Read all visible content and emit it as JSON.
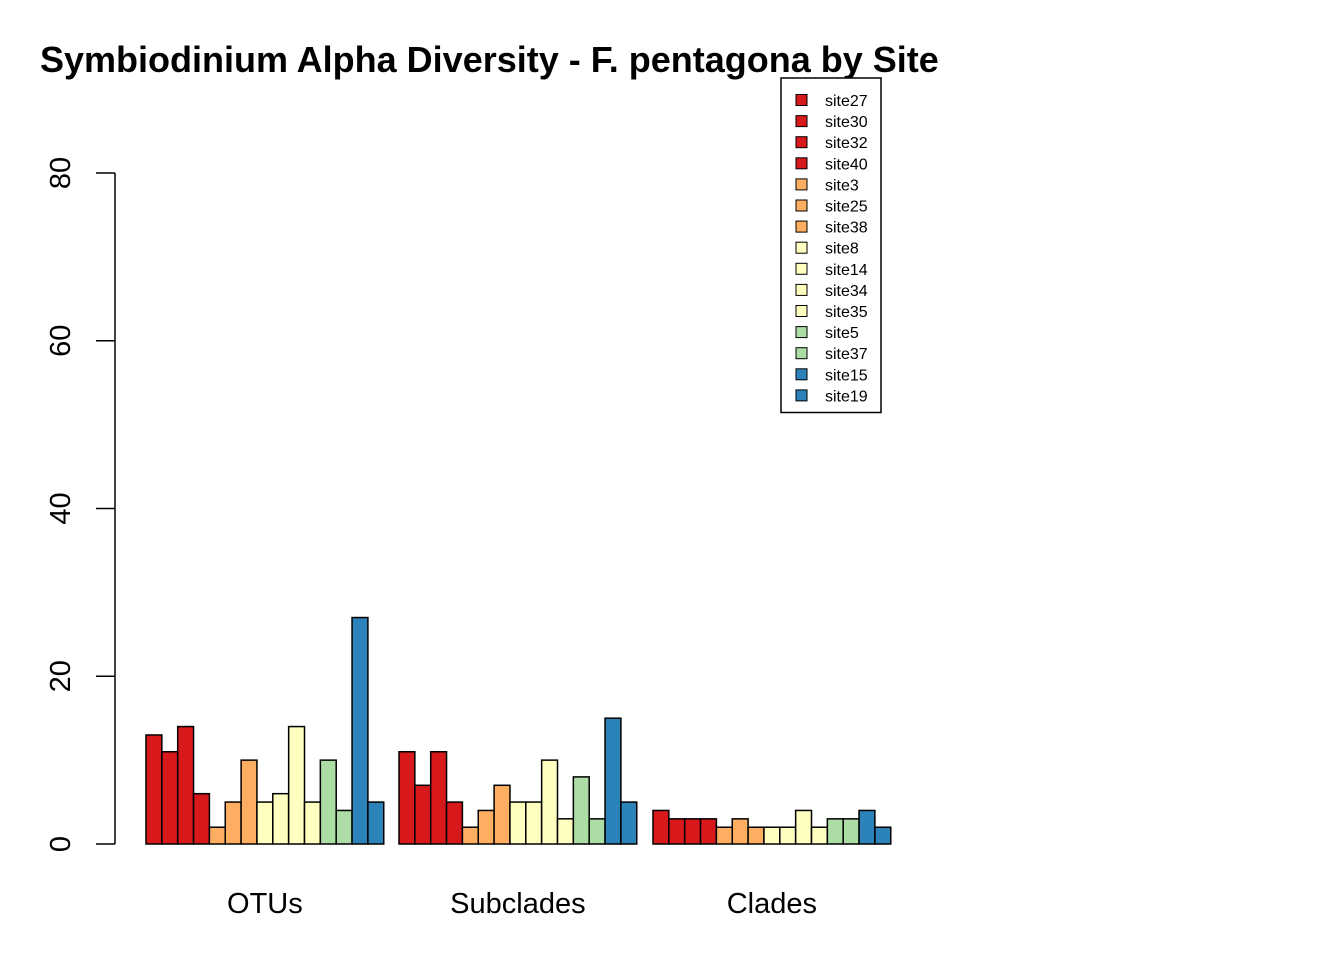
{
  "colors": {
    "red": "#d7191c",
    "orange": "#fdae61",
    "yellow": "#ffffbf",
    "green": "#abdda4",
    "blue": "#2b83ba"
  },
  "chart_data": {
    "type": "bar",
    "title": "Symbiodinium Alpha Diversity - F. pentagona by Site",
    "xlabel": "",
    "ylabel": "",
    "ylim": [
      0,
      80
    ],
    "yticks": [
      "0",
      "20",
      "40",
      "60",
      "80"
    ],
    "grid": false,
    "legend_position": "top-right",
    "categories": [
      "OTUs",
      "Subclades",
      "Clades"
    ],
    "series": [
      {
        "name": "site27",
        "color": "#d7191c",
        "values": [
          13,
          11,
          4
        ]
      },
      {
        "name": "site30",
        "color": "#d7191c",
        "values": [
          11,
          7,
          3
        ]
      },
      {
        "name": "site32",
        "color": "#d7191c",
        "values": [
          14,
          11,
          3
        ]
      },
      {
        "name": "site40",
        "color": "#d7191c",
        "values": [
          6,
          5,
          3
        ]
      },
      {
        "name": "site3",
        "color": "#fdae61",
        "values": [
          2,
          2,
          2
        ]
      },
      {
        "name": "site25",
        "color": "#fdae61",
        "values": [
          5,
          4,
          3
        ]
      },
      {
        "name": "site38",
        "color": "#fdae61",
        "values": [
          10,
          7,
          2
        ]
      },
      {
        "name": "site8",
        "color": "#ffffbf",
        "values": [
          5,
          5,
          2
        ]
      },
      {
        "name": "site14",
        "color": "#ffffbf",
        "values": [
          6,
          5,
          2
        ]
      },
      {
        "name": "site34",
        "color": "#ffffbf",
        "values": [
          14,
          10,
          4
        ]
      },
      {
        "name": "site35",
        "color": "#ffffbf",
        "values": [
          5,
          3,
          2
        ]
      },
      {
        "name": "site5",
        "color": "#abdda4",
        "values": [
          10,
          8,
          3
        ]
      },
      {
        "name": "site37",
        "color": "#abdda4",
        "values": [
          4,
          3,
          3
        ]
      },
      {
        "name": "site15",
        "color": "#2b83ba",
        "values": [
          27,
          15,
          4
        ]
      },
      {
        "name": "site19",
        "color": "#2b83ba",
        "values": [
          5,
          5,
          2
        ]
      }
    ]
  }
}
